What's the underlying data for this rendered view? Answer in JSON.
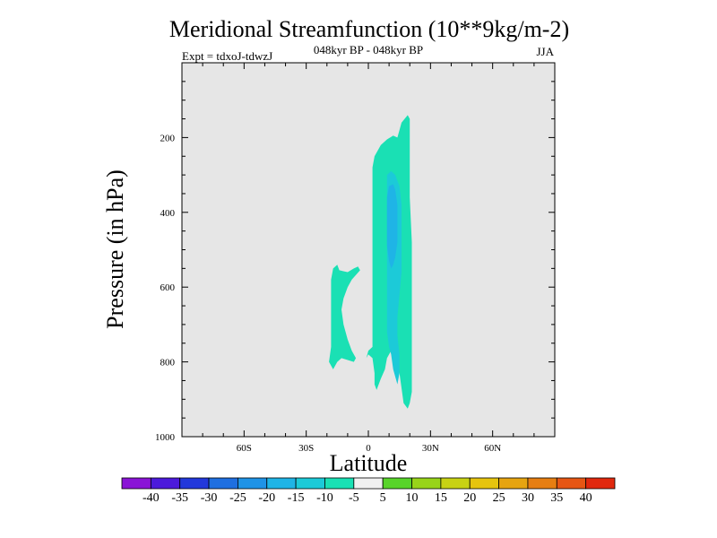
{
  "chart_data": {
    "type": "heatmap",
    "title": "Meridional Streamfunction (10**9kg/m-2)",
    "subtitle": "048kyr BP - 048kyr BP",
    "experiment_label": "Expt = tdxoJ-tdwzJ",
    "season": "JJA",
    "xlabel": "Latitude",
    "ylabel": "Pressure (in hPa)",
    "xlim": [
      -90,
      90
    ],
    "ylim": [
      1000,
      0
    ],
    "x_ticks": [
      {
        "value": -60,
        "label": "60S"
      },
      {
        "value": -30,
        "label": "30S"
      },
      {
        "value": 0,
        "label": "0"
      },
      {
        "value": 30,
        "label": "30N"
      },
      {
        "value": 60,
        "label": "60N"
      }
    ],
    "y_ticks": [
      {
        "value": 200,
        "label": "200"
      },
      {
        "value": 400,
        "label": "400"
      },
      {
        "value": 600,
        "label": "600"
      },
      {
        "value": 800,
        "label": "800"
      },
      {
        "value": 1000,
        "label": "1000"
      }
    ],
    "background_color": "#e6e6e6",
    "colorbar": {
      "levels": [
        -40,
        -35,
        -30,
        -25,
        -20,
        -15,
        -10,
        -5,
        5,
        10,
        15,
        20,
        25,
        30,
        35,
        40
      ],
      "labels": [
        "-40",
        "-35",
        "-30",
        "-25",
        "-20",
        "-15",
        "-10",
        "-5",
        "5",
        "10",
        "15",
        "20",
        "25",
        "30",
        "35",
        "40"
      ],
      "colors": [
        "#8a14d6",
        "#4c1adb",
        "#2238db",
        "#1f6fe0",
        "#1f93e6",
        "#1fb4e6",
        "#1ccad8",
        "#1ae0b4",
        "#f0f0f0",
        "#58d42a",
        "#98d41a",
        "#c8d214",
        "#e6c40e",
        "#e6a410",
        "#e67e12",
        "#e65614",
        "#e0280e"
      ]
    },
    "contours": [
      {
        "level": "-10 to -5",
        "color": "#1ae0b4",
        "points": [
          [
            -15,
            540
          ],
          [
            -14,
            555
          ],
          [
            -10,
            560
          ],
          [
            -7,
            550
          ],
          [
            -5,
            545
          ],
          [
            -4,
            555
          ],
          [
            -8,
            580
          ],
          [
            -10,
            600
          ],
          [
            -12,
            630
          ],
          [
            -13,
            660
          ],
          [
            -12,
            700
          ],
          [
            -10,
            740
          ],
          [
            -8,
            770
          ],
          [
            -6,
            790
          ],
          [
            -7,
            800
          ],
          [
            -10,
            795
          ],
          [
            -13,
            790
          ],
          [
            -15,
            800
          ],
          [
            -17,
            820
          ],
          [
            -18,
            810
          ],
          [
            -19,
            800
          ],
          [
            -18,
            760
          ],
          [
            -18,
            700
          ],
          [
            -18,
            640
          ],
          [
            -18,
            580
          ],
          [
            -17,
            550
          ],
          [
            -15,
            540
          ]
        ]
      },
      {
        "level": "-10 to -5",
        "color": "#1ae0b4",
        "points": [
          [
            2,
            760
          ],
          [
            2,
            720
          ],
          [
            2,
            660
          ],
          [
            2,
            560
          ],
          [
            2,
            460
          ],
          [
            2,
            360
          ],
          [
            2,
            280
          ],
          [
            3,
            250
          ],
          [
            6,
            220
          ],
          [
            9,
            205
          ],
          [
            12,
            195
          ],
          [
            14,
            200
          ],
          [
            15,
            180
          ],
          [
            16,
            160
          ],
          [
            19,
            140
          ],
          [
            20,
            150
          ],
          [
            20,
            220
          ],
          [
            20,
            360
          ],
          [
            21,
            480
          ],
          [
            21,
            600
          ],
          [
            21,
            700
          ],
          [
            21,
            800
          ],
          [
            21,
            880
          ],
          [
            20,
            910
          ],
          [
            19,
            925
          ],
          [
            17,
            910
          ],
          [
            16,
            870
          ],
          [
            15,
            830
          ],
          [
            13,
            790
          ],
          [
            11,
            770
          ],
          [
            9,
            790
          ],
          [
            8,
            820
          ],
          [
            6,
            845
          ],
          [
            4,
            875
          ],
          [
            3,
            860
          ],
          [
            3,
            830
          ],
          [
            2,
            790
          ],
          [
            0,
            780
          ],
          [
            -1,
            790
          ],
          [
            0,
            770
          ],
          [
            2,
            760
          ]
        ]
      },
      {
        "level": "-15 to -10",
        "color": "#1ccad8",
        "points": [
          [
            9,
            300
          ],
          [
            11,
            290
          ],
          [
            13,
            300
          ],
          [
            15,
            330
          ],
          [
            16,
            380
          ],
          [
            16,
            440
          ],
          [
            16,
            500
          ],
          [
            16,
            560
          ],
          [
            15,
            620
          ],
          [
            14,
            680
          ],
          [
            14,
            730
          ],
          [
            15,
            780
          ],
          [
            15,
            830
          ],
          [
            14,
            860
          ],
          [
            12,
            820
          ],
          [
            11,
            780
          ],
          [
            10,
            760
          ],
          [
            9,
            720
          ],
          [
            9,
            660
          ],
          [
            9,
            600
          ],
          [
            9,
            540
          ],
          [
            9,
            440
          ],
          [
            9,
            360
          ],
          [
            9,
            300
          ]
        ]
      },
      {
        "level": "-20 to -15",
        "color": "#1fb4e6",
        "points": [
          [
            9,
            360
          ],
          [
            10,
            330
          ],
          [
            12,
            325
          ],
          [
            13,
            340
          ],
          [
            14,
            380
          ],
          [
            14,
            430
          ],
          [
            14,
            480
          ],
          [
            13,
            520
          ],
          [
            12,
            540
          ],
          [
            11,
            550
          ],
          [
            10,
            530
          ],
          [
            9,
            490
          ],
          [
            9,
            430
          ],
          [
            9,
            380
          ]
        ]
      }
    ]
  }
}
